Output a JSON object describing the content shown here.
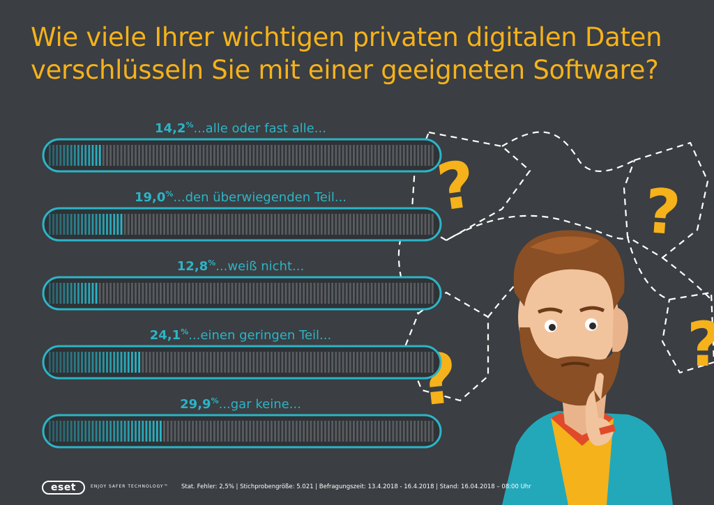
{
  "title": {
    "line1": "Wie viele Ihrer wichtigen privaten digitalen Daten",
    "line2": "verschlüsseln Sie mit einer geeigneten Software?"
  },
  "chart_data": {
    "type": "bar",
    "orientation": "horizontal",
    "unit": "%",
    "xlim": [
      0,
      100
    ],
    "grid": false,
    "categories": [
      "...alle oder fast alle...",
      "...den überwiegenden Teil...",
      "...weiß nicht...",
      "...einen geringen Teil...",
      "...gar keine..."
    ],
    "value_labels": [
      "14,2",
      "19,0",
      "12,8",
      "24,1",
      "29,9"
    ],
    "values": [
      14.2,
      19.0,
      12.8,
      24.1,
      29.9
    ]
  },
  "colors": {
    "background": "#3b3e42",
    "title": "#f5b21b",
    "accent": "#2bb5c7",
    "bar_empty": "#5a5d60",
    "question_mark": "#f5b21b"
  },
  "footer": {
    "logo": "eset",
    "tagline": "ENJOY SAFER TECHNOLOGY™",
    "stats": "Stat. Fehler: 2,5% | Stichprobengröße: 5.021 | Befragungszeit: 13.4.2018 - 16.4.2018 | Stand: 16.04.2018 – 08:00 Uhr"
  },
  "icons": [
    "question-mark-icon",
    "thinking-man-illustration",
    "eset-logo"
  ]
}
